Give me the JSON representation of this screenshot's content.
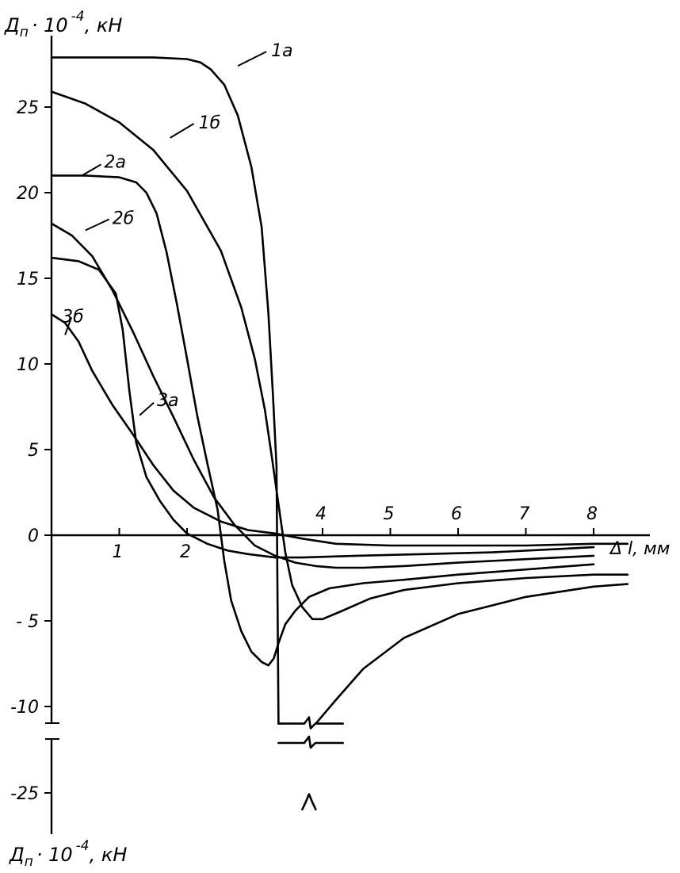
{
  "chart_data": {
    "type": "line",
    "title": "",
    "y_label": {
      "main": "Д",
      "sub": "п",
      "rest": "· 10",
      "exp": "-4",
      "unit": ", кН"
    },
    "y_label_bottom": {
      "main": "Д",
      "sub": "п",
      "rest": "· 10",
      "exp": "-4",
      "unit": ", кН"
    },
    "x_label": "Δ l, мм",
    "xlim": [
      0,
      8.5
    ],
    "ylim_upper": [
      -11,
      28
    ],
    "y_broken_value": -25,
    "x_ticks": [
      "1",
      "2",
      "4",
      "5",
      "6",
      "7",
      "8"
    ],
    "y_ticks": [
      "25",
      "20",
      "15",
      "10",
      "5",
      "0",
      "- 5",
      "-10",
      "-25"
    ],
    "grid": false,
    "legend": "none",
    "series": [
      {
        "name": "1а",
        "label_at": [
          2.75,
          27.4
        ],
        "points": [
          [
            0,
            27.9
          ],
          [
            1.5,
            27.9
          ],
          [
            2.0,
            27.8
          ],
          [
            2.2,
            27.6
          ],
          [
            2.35,
            27.2
          ],
          [
            2.55,
            26.3
          ],
          [
            2.75,
            24.5
          ],
          [
            2.95,
            21.5
          ],
          [
            3.1,
            18
          ],
          [
            3.2,
            13
          ],
          [
            3.27,
            8
          ],
          [
            3.32,
            4
          ],
          [
            3.35,
            -11
          ]
        ],
        "tail": [
          [
            3.9,
            -11
          ],
          [
            4.2,
            -9.6
          ],
          [
            4.6,
            -7.8
          ],
          [
            5.2,
            -6
          ],
          [
            6.0,
            -4.6
          ],
          [
            7.0,
            -3.6
          ],
          [
            8.0,
            -3.0
          ],
          [
            8.5,
            -2.85
          ]
        ],
        "spike": [
          [
            3.7,
            -22.4
          ],
          [
            3.75,
            -23.5
          ],
          [
            3.8,
            -24.8
          ],
          [
            3.85,
            -23.5
          ],
          [
            3.9,
            -22.4
          ]
        ]
      },
      {
        "name": "1б",
        "label_at": [
          1.75,
          23.2
        ],
        "points": [
          [
            0,
            25.9
          ],
          [
            0.5,
            25.2
          ],
          [
            1.0,
            24.1
          ],
          [
            1.5,
            22.5
          ],
          [
            2.0,
            20.1
          ],
          [
            2.5,
            16.6
          ],
          [
            2.8,
            13.3
          ],
          [
            3.0,
            10.3
          ],
          [
            3.15,
            7.3
          ],
          [
            3.25,
            4.6
          ],
          [
            3.35,
            1.8
          ],
          [
            3.45,
            -1.0
          ],
          [
            3.55,
            -2.9
          ],
          [
            3.7,
            -4.2
          ],
          [
            3.85,
            -4.9
          ],
          [
            4.0,
            -4.9
          ],
          [
            4.3,
            -4.4
          ],
          [
            4.7,
            -3.7
          ],
          [
            5.2,
            -3.2
          ],
          [
            6.0,
            -2.8
          ],
          [
            7.0,
            -2.5
          ],
          [
            8.0,
            -2.3
          ],
          [
            8.5,
            -2.3
          ]
        ]
      },
      {
        "name": "2а",
        "label_at": [
          0.45,
          21.0
        ],
        "points": [
          [
            0,
            21
          ],
          [
            0.5,
            21
          ],
          [
            1.0,
            20.9
          ],
          [
            1.25,
            20.6
          ],
          [
            1.4,
            20.0
          ],
          [
            1.55,
            18.8
          ],
          [
            1.7,
            16.5
          ],
          [
            1.85,
            13.5
          ],
          [
            2.0,
            10.3
          ],
          [
            2.15,
            7.0
          ],
          [
            2.3,
            4.2
          ],
          [
            2.45,
            1.5
          ],
          [
            2.55,
            -1.5
          ],
          [
            2.65,
            -3.8
          ],
          [
            2.8,
            -5.6
          ],
          [
            2.95,
            -6.8
          ],
          [
            3.1,
            -7.4
          ],
          [
            3.2,
            -7.6
          ],
          [
            3.28,
            -7.2
          ],
          [
            3.35,
            -6.3
          ],
          [
            3.45,
            -5.2
          ],
          [
            3.6,
            -4.4
          ],
          [
            3.8,
            -3.6
          ],
          [
            4.1,
            -3.1
          ],
          [
            4.6,
            -2.8
          ],
          [
            5.2,
            -2.6
          ],
          [
            6.0,
            -2.3
          ],
          [
            7.0,
            -2.0
          ],
          [
            8.0,
            -1.7
          ]
        ]
      },
      {
        "name": "2б",
        "label_at": [
          0.5,
          17.8
        ],
        "points": [
          [
            0,
            18.2
          ],
          [
            0.3,
            17.5
          ],
          [
            0.6,
            16.3
          ],
          [
            0.9,
            14.3
          ],
          [
            1.2,
            11.9
          ],
          [
            1.5,
            9.3
          ],
          [
            1.8,
            6.9
          ],
          [
            2.1,
            4.4
          ],
          [
            2.4,
            2.2
          ],
          [
            2.7,
            0.6
          ],
          [
            3.0,
            -0.6
          ],
          [
            3.3,
            -1.2
          ],
          [
            3.6,
            -1.6
          ],
          [
            3.9,
            -1.8
          ],
          [
            4.2,
            -1.9
          ],
          [
            4.6,
            -1.9
          ],
          [
            5.2,
            -1.8
          ],
          [
            6.0,
            -1.6
          ],
          [
            7.0,
            -1.4
          ],
          [
            8.0,
            -1.2
          ]
        ]
      },
      {
        "name": "3а",
        "label_at": [
          1.3,
          7.0
        ],
        "points": [
          [
            0,
            16.2
          ],
          [
            0.4,
            16.0
          ],
          [
            0.7,
            15.5
          ],
          [
            0.95,
            14.1
          ],
          [
            1.05,
            12.0
          ],
          [
            1.15,
            8.4
          ],
          [
            1.25,
            5.4
          ],
          [
            1.4,
            3.4
          ],
          [
            1.6,
            2.0
          ],
          [
            1.8,
            0.9
          ],
          [
            2.0,
            0.1
          ],
          [
            2.3,
            -0.5
          ],
          [
            2.6,
            -0.9
          ],
          [
            2.9,
            -1.1
          ],
          [
            3.3,
            -1.3
          ],
          [
            3.7,
            -1.3
          ],
          [
            4.5,
            -1.2
          ],
          [
            5.5,
            -1.1
          ],
          [
            6.5,
            -1.0
          ],
          [
            7.5,
            -0.8
          ],
          [
            8.0,
            -0.7
          ]
        ]
      },
      {
        "name": "3б",
        "label_at": [
          0.2,
          11.7
        ],
        "points": [
          [
            0,
            12.9
          ],
          [
            0.2,
            12.4
          ],
          [
            0.4,
            11.3
          ],
          [
            0.6,
            9.6
          ],
          [
            0.9,
            7.6
          ],
          [
            1.2,
            5.9
          ],
          [
            1.5,
            4.1
          ],
          [
            1.8,
            2.6
          ],
          [
            2.1,
            1.6
          ],
          [
            2.5,
            0.8
          ],
          [
            2.9,
            0.3
          ],
          [
            3.3,
            0.1
          ],
          [
            3.7,
            -0.2
          ],
          [
            4.2,
            -0.5
          ],
          [
            5.0,
            -0.6
          ],
          [
            6.0,
            -0.6
          ],
          [
            7.0,
            -0.6
          ],
          [
            8.0,
            -0.5
          ],
          [
            8.5,
            -0.5
          ]
        ]
      }
    ]
  }
}
